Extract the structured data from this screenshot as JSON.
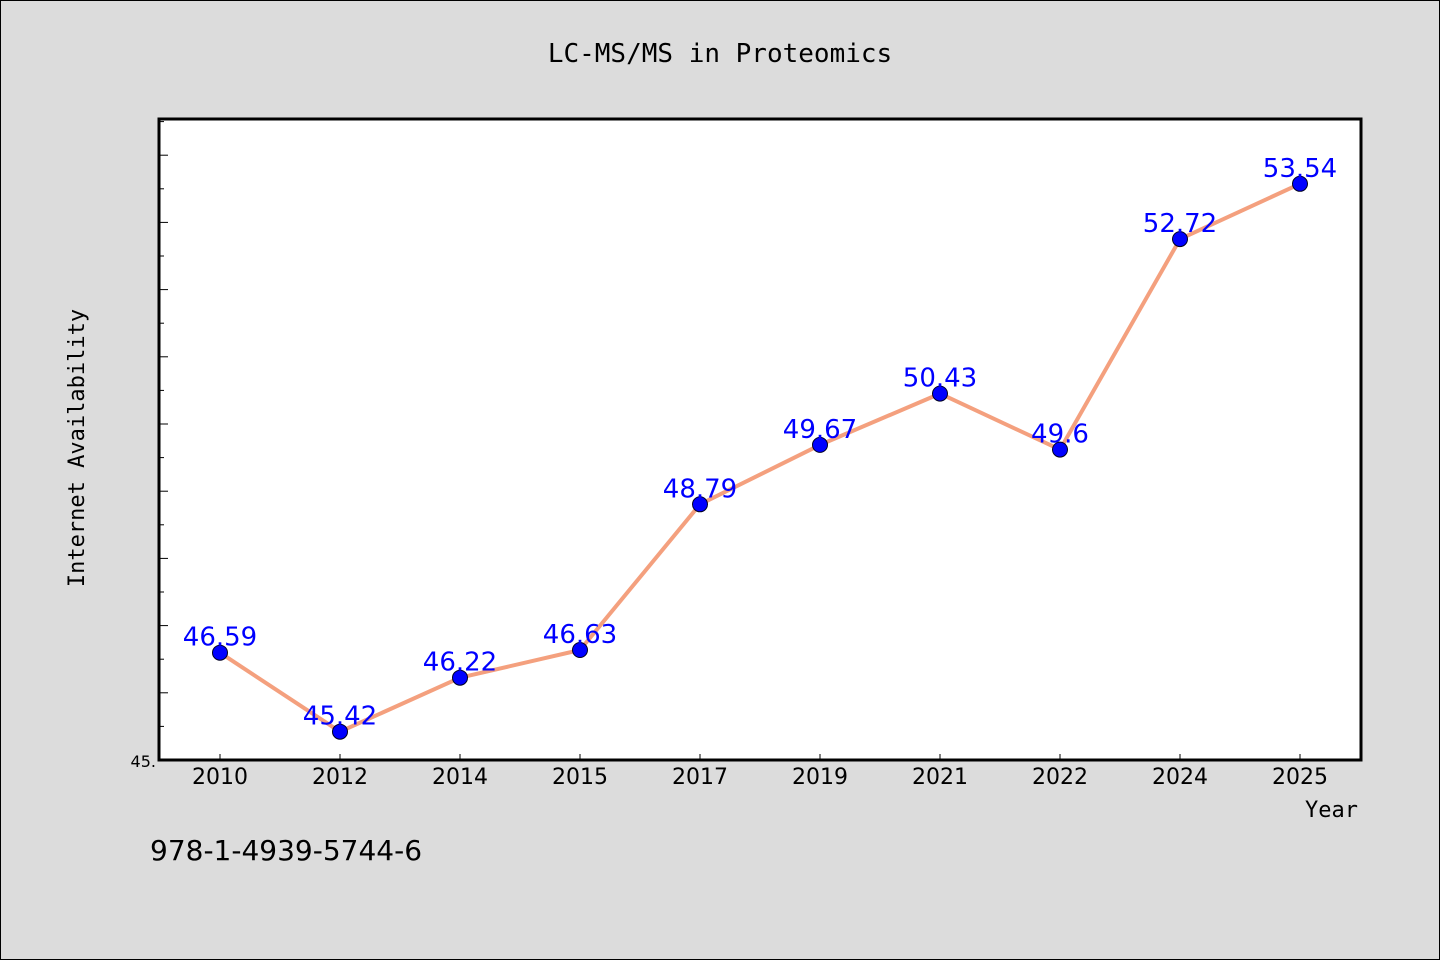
{
  "chart_data": {
    "type": "line",
    "title": "LC-MS/MS in Proteomics",
    "xlabel": "Year",
    "ylabel": "Internet Availability",
    "categories": [
      "2010",
      "2012",
      "2014",
      "2015",
      "2017",
      "2019",
      "2021",
      "2022",
      "2024",
      "2025"
    ],
    "series": [
      {
        "values": [
          46.59,
          45.42,
          46.22,
          46.63,
          48.79,
          49.67,
          50.43,
          49.6,
          52.72,
          53.54
        ],
        "labels": [
          "46.59",
          "45.42",
          "46.22",
          "46.63",
          "48.79",
          "49.67",
          "50.43",
          "49.6",
          "52.72",
          "53.54"
        ],
        "line_color": "#f4a07e",
        "marker_color": "#0000ff"
      }
    ],
    "ylim": [
      45.0,
      54.5
    ],
    "y_tick_label_shown": "45.",
    "grid": false,
    "legend": "none"
  },
  "footer": {
    "isbn": "978-1-4939-5744-6"
  },
  "colors": {
    "background": "#dcdcdc",
    "plot_background": "#ffffff",
    "line": "#f4a07e",
    "marker": "#0000ff",
    "data_label": "#0000ff"
  }
}
